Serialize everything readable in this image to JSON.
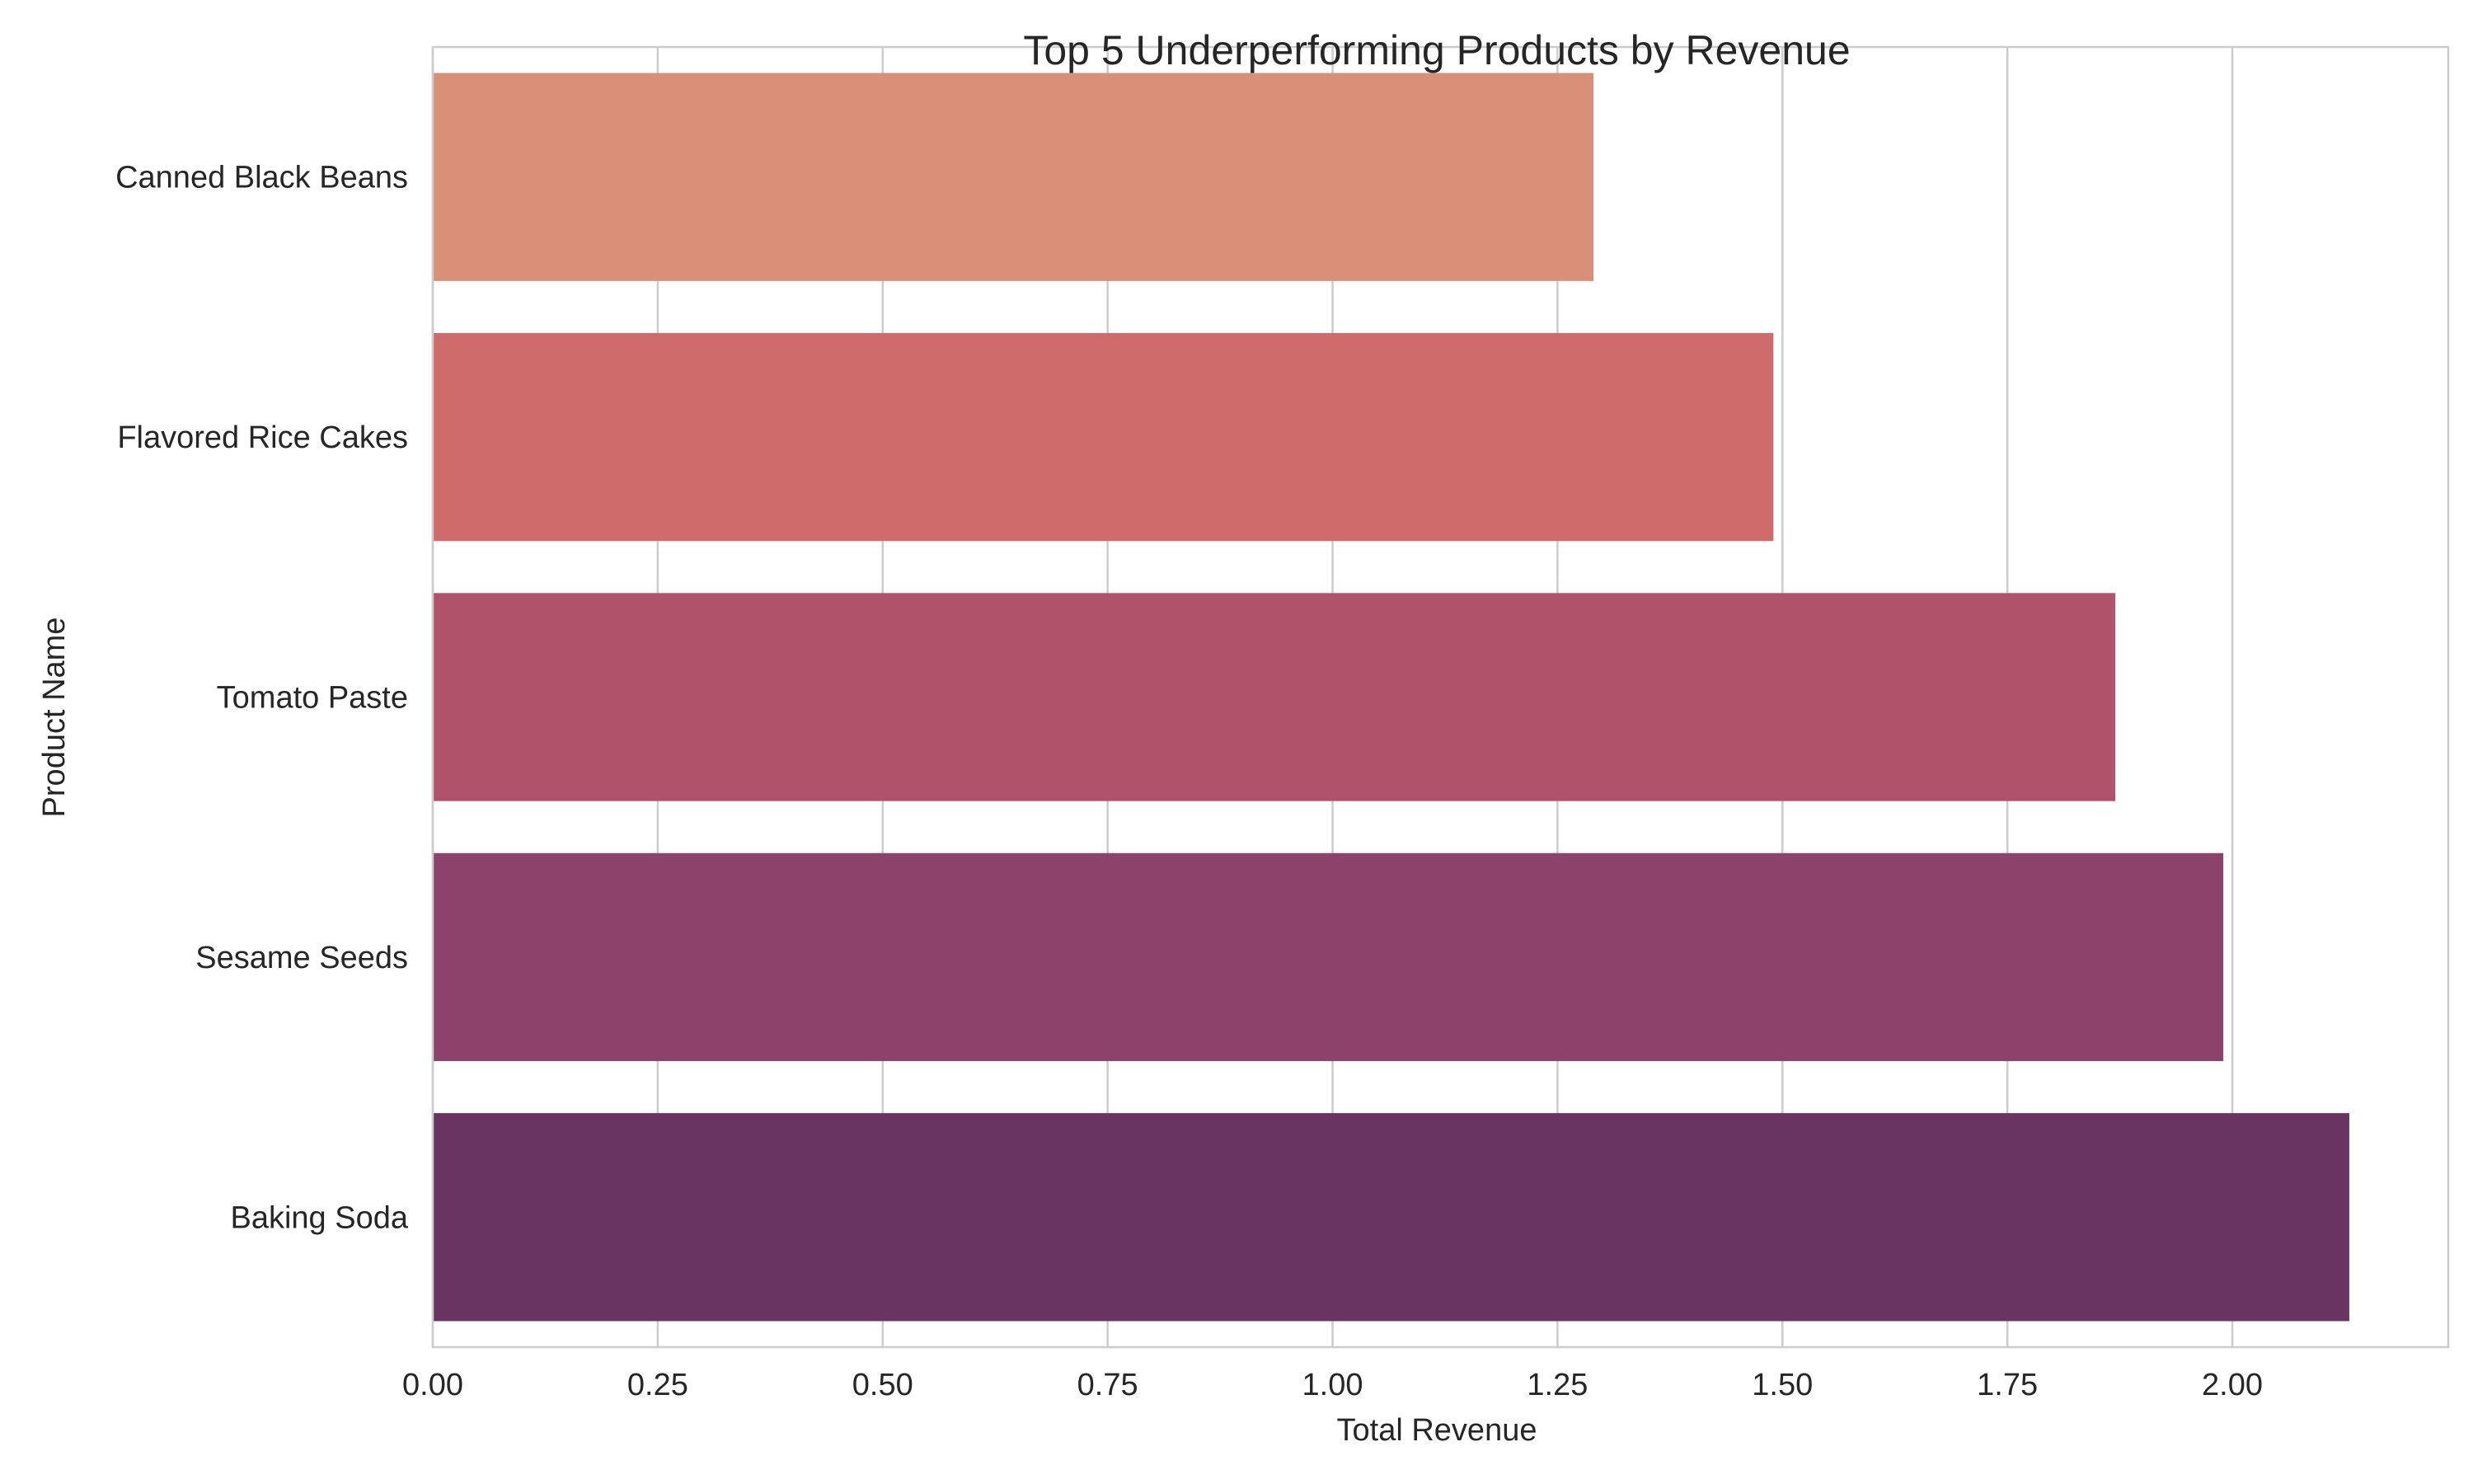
{
  "chart_data": {
    "type": "bar",
    "orientation": "horizontal",
    "title": "Top 5 Underperforming Products by Revenue",
    "xlabel": "Total Revenue",
    "ylabel": "Product Name",
    "categories": [
      "Canned Black Beans",
      "Flavored Rice Cakes",
      "Tomato Paste",
      "Sesame Seeds",
      "Baking Soda"
    ],
    "values": [
      1.29,
      1.49,
      1.87,
      1.99,
      2.13
    ],
    "colors": [
      "#d98f78",
      "#cf6b6b",
      "#b0526a",
      "#8c426b",
      "#693462"
    ],
    "xlim": [
      0,
      2.24
    ],
    "xticks": [
      0.0,
      0.25,
      0.5,
      0.75,
      1.0,
      1.25,
      1.5,
      1.75,
      2.0
    ],
    "xtick_labels": [
      "0.00",
      "0.25",
      "0.50",
      "0.75",
      "1.00",
      "1.25",
      "1.50",
      "1.75",
      "2.00"
    ],
    "grid": "vertical",
    "grid_color": "#cccccc"
  }
}
